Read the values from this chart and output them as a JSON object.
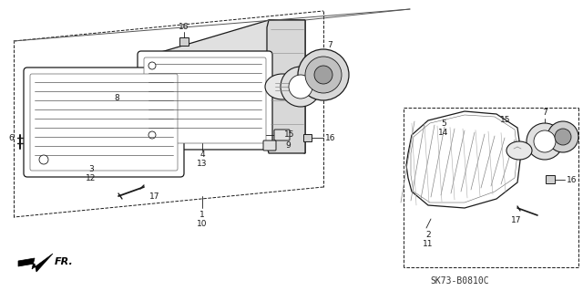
{
  "background_color": "#ffffff",
  "line_color": "#1a1a1a",
  "gray_fill": "#d0d0d0",
  "light_gray": "#e8e8e8",
  "hatch_color": "#888888",
  "diagram_code": "SK73-B0810C"
}
